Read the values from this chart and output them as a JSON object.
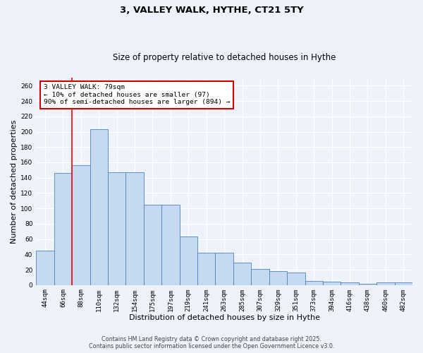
{
  "title1": "3, VALLEY WALK, HYTHE, CT21 5TY",
  "title2": "Size of property relative to detached houses in Hythe",
  "xlabel": "Distribution of detached houses by size in Hythe",
  "ylabel": "Number of detached properties",
  "categories": [
    "44sqm",
    "66sqm",
    "88sqm",
    "110sqm",
    "132sqm",
    "154sqm",
    "175sqm",
    "197sqm",
    "219sqm",
    "241sqm",
    "263sqm",
    "285sqm",
    "307sqm",
    "329sqm",
    "351sqm",
    "373sqm",
    "394sqm",
    "416sqm",
    "438sqm",
    "460sqm",
    "482sqm"
  ],
  "values": [
    45,
    146,
    156,
    203,
    147,
    147,
    105,
    105,
    63,
    42,
    42,
    29,
    21,
    18,
    16,
    5,
    4,
    3,
    2,
    3,
    3
  ],
  "bar_color": "#c5d9f1",
  "bar_edge_color": "#4f81bd",
  "red_line_x": 1.5,
  "annotation_text": "3 VALLEY WALK: 79sqm\n← 10% of detached houses are smaller (97)\n90% of semi-detached houses are larger (894) →",
  "annotation_box_color": "#ffffff",
  "annotation_box_edge": "#cc0000",
  "ylim": [
    0,
    270
  ],
  "yticks": [
    0,
    20,
    40,
    60,
    80,
    100,
    120,
    140,
    160,
    180,
    200,
    220,
    240,
    260
  ],
  "footer1": "Contains HM Land Registry data © Crown copyright and database right 2025.",
  "footer2": "Contains public sector information licensed under the Open Government Licence v3.0.",
  "background_color": "#eef2fa",
  "grid_color": "#ffffff",
  "title1_fontsize": 9.5,
  "title2_fontsize": 8.5,
  "tick_fontsize": 6.5,
  "label_fontsize": 8,
  "footer_fontsize": 5.8,
  "annot_fontsize": 6.8
}
